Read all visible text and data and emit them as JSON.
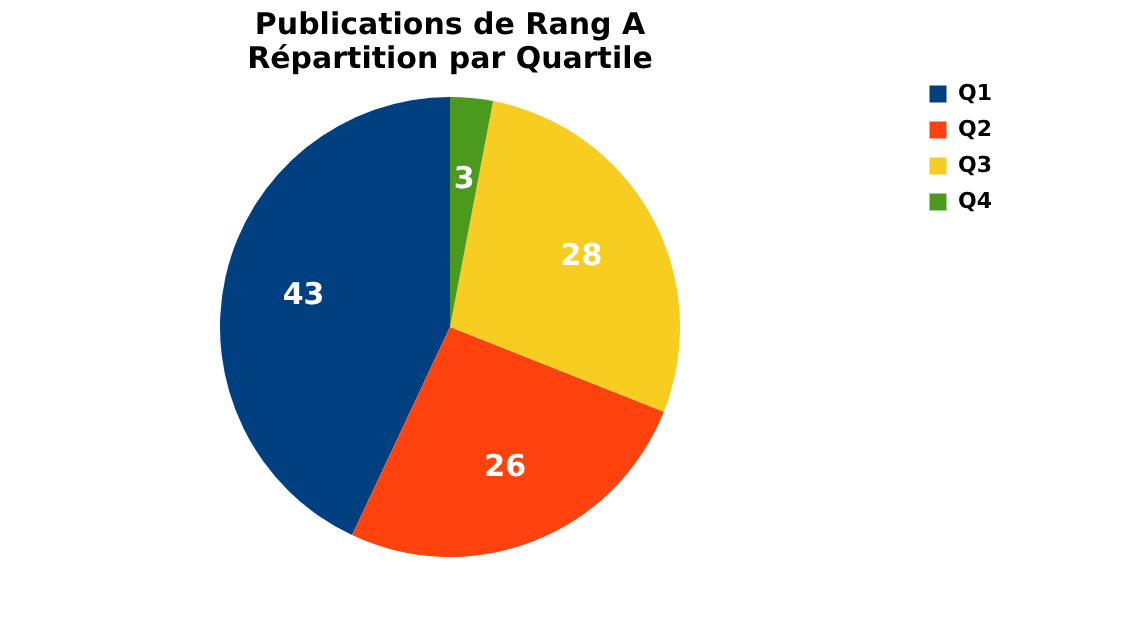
{
  "chart_data": {
    "type": "pie",
    "title": "Publications de Rang A\nRépartition par Quartile",
    "categories": [
      "Q1",
      "Q2",
      "Q3",
      "Q4"
    ],
    "values": [
      43,
      26,
      28,
      3
    ],
    "colors": [
      "#003f80",
      "#ff420e",
      "#f8cd21",
      "#4b9a1d"
    ],
    "data_labels": true,
    "legend": "right"
  }
}
